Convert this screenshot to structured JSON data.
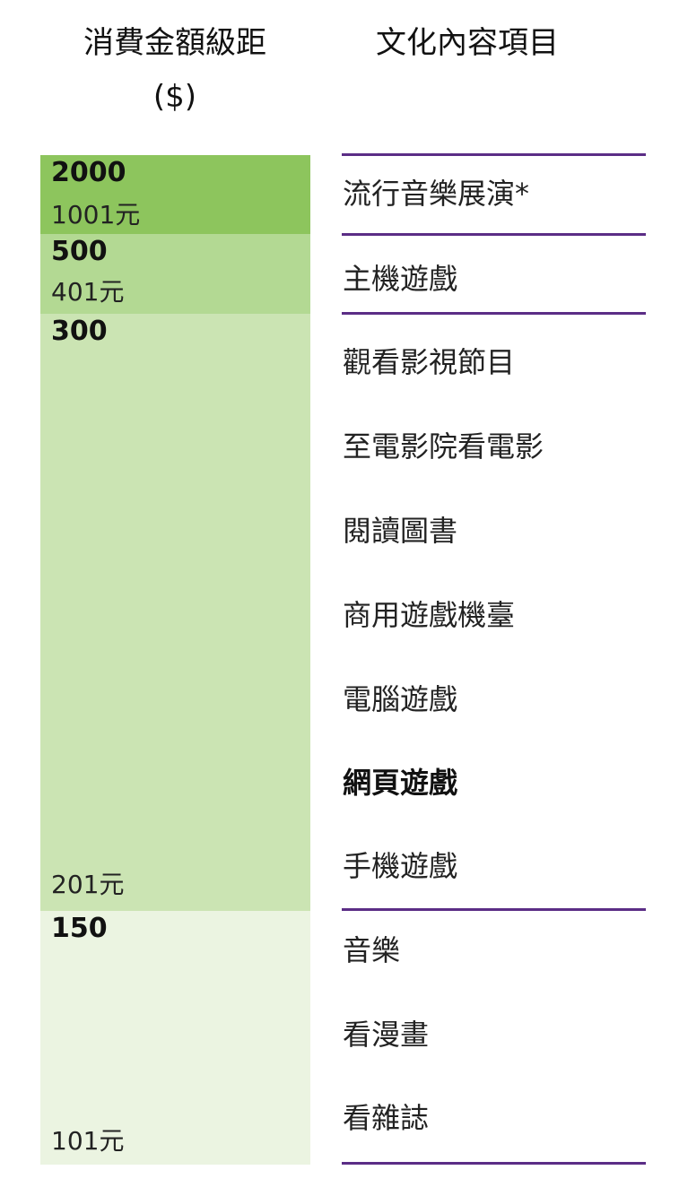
{
  "headers": {
    "amount_line1": "消費金額級距",
    "amount_line2": "($)",
    "items": "文化內容項目"
  },
  "tiers": [
    {
      "max": "2000",
      "min": "1001元",
      "color": "#8dc55d"
    },
    {
      "max": "500",
      "min": "401元",
      "color": "#b3d993"
    },
    {
      "max": "300",
      "min": "201元",
      "color": "#cbe4b3"
    },
    {
      "max": "150",
      "min": "101元",
      "color": "#ebf4e1"
    }
  ],
  "items": [
    {
      "label": "流行音樂展演*",
      "tier": 0
    },
    {
      "label": "主機遊戲",
      "tier": 1
    },
    {
      "label": "觀看影視節目",
      "tier": 2
    },
    {
      "label": "至電影院看電影",
      "tier": 2
    },
    {
      "label": "閱讀圖書",
      "tier": 2
    },
    {
      "label": "商用遊戲機臺",
      "tier": 2
    },
    {
      "label": "電腦遊戲",
      "tier": 2
    },
    {
      "label": "網頁遊戲",
      "tier": 2,
      "bold": true
    },
    {
      "label": "手機遊戲",
      "tier": 2
    },
    {
      "label": "音樂",
      "tier": 3
    },
    {
      "label": "看漫畫",
      "tier": 3
    },
    {
      "label": "看雜誌",
      "tier": 3
    }
  ],
  "colors": {
    "divider": "#5b2d86"
  }
}
